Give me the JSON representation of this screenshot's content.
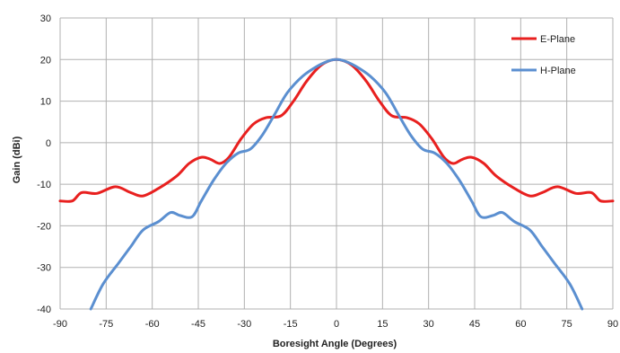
{
  "chart_data": {
    "type": "line",
    "title": "",
    "xlabel": "Boresight Angle (Degrees)",
    "ylabel": "Gain (dBi)",
    "xlim": [
      -90,
      90
    ],
    "ylim": [
      -40,
      30
    ],
    "xticks": [
      "-90",
      "-75",
      "-60",
      "-45",
      "-30",
      "-15",
      "0",
      "15",
      "30",
      "45",
      "60",
      "75",
      "90"
    ],
    "yticks": [
      "30",
      "20",
      "10",
      "0",
      "-10",
      "-20",
      "-30",
      "-40"
    ],
    "grid": true,
    "legend_position": "top-right",
    "series": [
      {
        "name": "E-Plane",
        "color": "#e8201f",
        "points": [
          [
            -90,
            -14
          ],
          [
            -86,
            -14
          ],
          [
            -83,
            -12
          ],
          [
            -78,
            -12.2
          ],
          [
            -72,
            -10.6
          ],
          [
            -67,
            -12
          ],
          [
            -63,
            -12.8
          ],
          [
            -58,
            -11
          ],
          [
            -52,
            -8
          ],
          [
            -48,
            -5
          ],
          [
            -44,
            -3.5
          ],
          [
            -41,
            -4
          ],
          [
            -38,
            -5
          ],
          [
            -35,
            -3.5
          ],
          [
            -31,
            1
          ],
          [
            -27,
            4.5
          ],
          [
            -23,
            6
          ],
          [
            -18,
            6.5
          ],
          [
            -14,
            10
          ],
          [
            -10,
            14.5
          ],
          [
            -6,
            18
          ],
          [
            -3,
            19.5
          ],
          [
            0,
            20
          ],
          [
            3,
            19.5
          ],
          [
            6,
            18
          ],
          [
            10,
            14.5
          ],
          [
            14,
            10
          ],
          [
            18,
            6.5
          ],
          [
            23,
            6
          ],
          [
            27,
            4.5
          ],
          [
            31,
            1
          ],
          [
            35,
            -3.5
          ],
          [
            38,
            -5
          ],
          [
            41,
            -4
          ],
          [
            44,
            -3.5
          ],
          [
            48,
            -5
          ],
          [
            52,
            -8
          ],
          [
            58,
            -11
          ],
          [
            63,
            -12.8
          ],
          [
            67,
            -12
          ],
          [
            72,
            -10.6
          ],
          [
            78,
            -12.2
          ],
          [
            83,
            -12
          ],
          [
            86,
            -14
          ],
          [
            90,
            -14
          ]
        ]
      },
      {
        "name": "H-Plane",
        "color": "#5b8fd0",
        "points": [
          [
            -80,
            -40
          ],
          [
            -76,
            -34
          ],
          [
            -71,
            -29
          ],
          [
            -67,
            -25
          ],
          [
            -63,
            -21
          ],
          [
            -58,
            -19
          ],
          [
            -54,
            -16.8
          ],
          [
            -51,
            -17.5
          ],
          [
            -47,
            -17.8
          ],
          [
            -44,
            -14
          ],
          [
            -40,
            -9
          ],
          [
            -36,
            -5
          ],
          [
            -32,
            -2.5
          ],
          [
            -28,
            -1.5
          ],
          [
            -24,
            2
          ],
          [
            -20,
            7
          ],
          [
            -16,
            12
          ],
          [
            -11,
            16
          ],
          [
            -6,
            18.5
          ],
          [
            -2,
            19.8
          ],
          [
            0,
            20
          ],
          [
            2,
            19.8
          ],
          [
            6,
            18.5
          ],
          [
            11,
            16
          ],
          [
            16,
            12
          ],
          [
            20,
            7
          ],
          [
            24,
            2
          ],
          [
            28,
            -1.5
          ],
          [
            32,
            -2.5
          ],
          [
            36,
            -5
          ],
          [
            40,
            -9
          ],
          [
            44,
            -14
          ],
          [
            47,
            -17.8
          ],
          [
            51,
            -17.5
          ],
          [
            54,
            -16.8
          ],
          [
            58,
            -19
          ],
          [
            63,
            -21
          ],
          [
            67,
            -25
          ],
          [
            71,
            -29
          ],
          [
            76,
            -34
          ],
          [
            80,
            -40
          ]
        ]
      }
    ]
  }
}
